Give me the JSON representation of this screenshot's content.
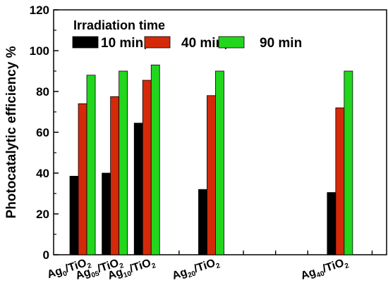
{
  "chart_data": {
    "type": "bar",
    "categories": [
      {
        "base": "Ag",
        "sub": "0",
        "mid": "/TiO",
        "sub2": "2"
      },
      {
        "base": "Ag",
        "sub": "05",
        "mid": "/TiO",
        "sub2": "2"
      },
      {
        "base": "Ag",
        "sub": "10",
        "mid": "/TiO",
        "sub2": "2"
      },
      {
        "base": "Ag",
        "sub": "20",
        "mid": "/TiO",
        "sub2": "2"
      },
      {
        "base": "Ag",
        "sub": "40",
        "mid": "/TiO",
        "sub2": "2"
      }
    ],
    "category_positions": [
      0,
      1,
      2,
      4,
      8
    ],
    "x_range": [
      -0.9,
      9.45
    ],
    "series": [
      {
        "name": "10 min,",
        "color": "#000000",
        "values": [
          38.5,
          40,
          64.5,
          32,
          30.5
        ]
      },
      {
        "name": "40 min,",
        "color": "#d42a0a",
        "values": [
          74,
          77.5,
          85.5,
          78,
          72
        ]
      },
      {
        "name": "90 min",
        "color": "#22d61e",
        "values": [
          88,
          90,
          93,
          90,
          90
        ]
      }
    ],
    "legend_title": "Irradiation time",
    "legend_position": "top-left",
    "ylabel": "Photocatalytic efficiency %",
    "xlabel": "",
    "ylim": [
      0,
      120
    ],
    "yticks": [
      0,
      20,
      40,
      60,
      80,
      100,
      120
    ],
    "grid": false
  }
}
